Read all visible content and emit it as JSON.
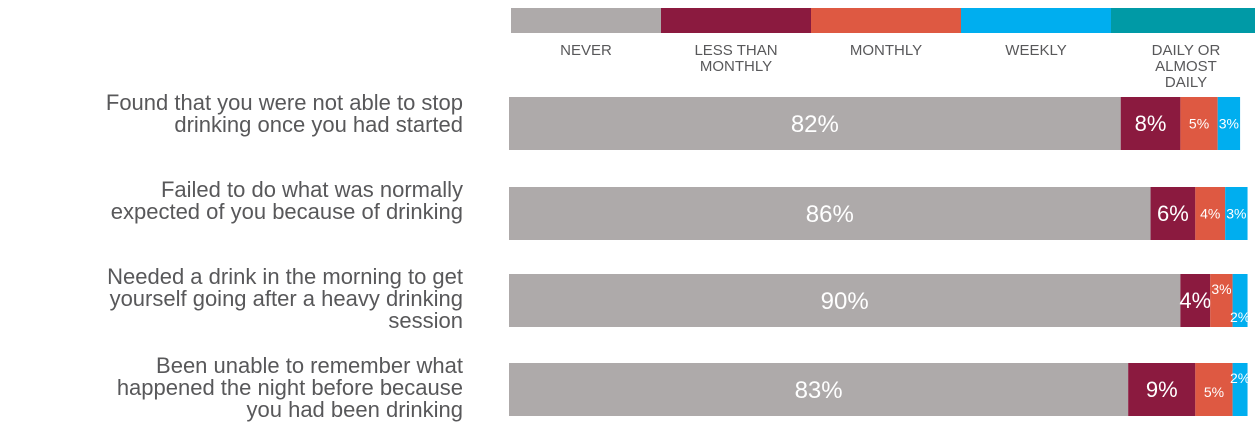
{
  "chart_data": {
    "type": "bar",
    "orientation": "horizontal",
    "stacked": true,
    "legend_position": "top",
    "grid": false,
    "xlim": [
      0,
      100
    ],
    "categories": [
      [
        "Found that you were not able to stop",
        "drinking once you had started"
      ],
      [
        "Failed to do what was normally",
        "expected of you because of drinking"
      ],
      [
        "Needed a drink in the morning to get",
        "yourself going after a heavy drinking",
        "session"
      ],
      [
        "Been unable to remember what",
        "happened the night before because",
        "you had been drinking"
      ]
    ],
    "series": [
      {
        "name": "NEVER",
        "color": "#aeaaaa",
        "values": [
          82,
          86,
          90,
          83
        ]
      },
      {
        "name": "LESS THAN MONTHLY",
        "color": "#8b1a3f",
        "values": [
          8,
          6,
          4,
          9
        ]
      },
      {
        "name": "MONTHLY",
        "color": "#de5942",
        "values": [
          5,
          4,
          3,
          5
        ]
      },
      {
        "name": "WEEKLY",
        "color": "#00aeef",
        "values": [
          3,
          3,
          2,
          2
        ]
      },
      {
        "name": "DAILY OR ALMOST DAILY",
        "color": "#009aa6",
        "values": [
          null,
          null,
          null,
          null
        ]
      }
    ],
    "legend_labels": [
      [
        "NEVER"
      ],
      [
        "LESS THAN",
        "MONTHLY"
      ],
      [
        "MONTHLY"
      ],
      [
        "WEEKLY"
      ],
      [
        "DAILY OR",
        "ALMOST",
        "DAILY"
      ]
    ],
    "data_labels": [
      [
        "82%",
        "8%",
        "5%",
        "3%"
      ],
      [
        "86%",
        "6%",
        "4%",
        "3%"
      ],
      [
        "90%",
        "4%",
        "3%",
        "2%"
      ],
      [
        "83%",
        "9%",
        "5%",
        "2%"
      ]
    ]
  }
}
